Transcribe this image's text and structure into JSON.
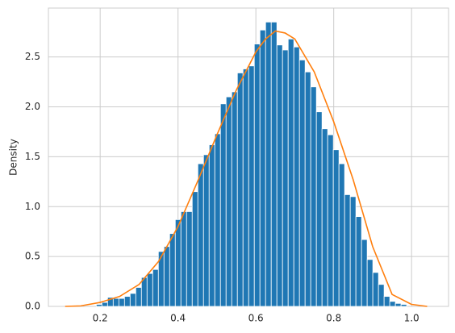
{
  "chart_data": {
    "type": "histogram",
    "ylabel": "Density",
    "bins": [
      0.19,
      0.2045,
      0.219,
      0.2335,
      0.248,
      0.2625,
      0.277,
      0.2915,
      0.306,
      0.3205,
      0.335,
      0.3495,
      0.364,
      0.3785,
      0.393,
      0.4075,
      0.422,
      0.4365,
      0.451,
      0.4655,
      0.48,
      0.4945,
      0.509,
      0.5235,
      0.538,
      0.5525,
      0.567,
      0.5815,
      0.596,
      0.6105,
      0.625,
      0.6395,
      0.654,
      0.6685,
      0.683,
      0.6975,
      0.712,
      0.7265,
      0.741,
      0.7555,
      0.77,
      0.7845,
      0.799,
      0.8135,
      0.828,
      0.8425,
      0.857,
      0.8715,
      0.886,
      0.9005,
      0.915,
      0.9295,
      0.944,
      0.9585,
      0.973,
      0.9875
    ],
    "values": [
      0.02,
      0.04,
      0.09,
      0.08,
      0.08,
      0.1,
      0.13,
      0.19,
      0.29,
      0.33,
      0.37,
      0.55,
      0.6,
      0.73,
      0.87,
      0.95,
      0.95,
      1.15,
      1.43,
      1.52,
      1.62,
      1.73,
      2.03,
      2.1,
      2.15,
      2.34,
      2.38,
      2.41,
      2.63,
      2.77,
      2.85,
      2.85,
      2.62,
      2.57,
      2.68,
      2.6,
      2.47,
      2.35,
      2.2,
      1.95,
      1.78,
      1.72,
      1.57,
      1.43,
      1.12,
      1.1,
      0.9,
      0.67,
      0.47,
      0.34,
      0.22,
      0.1,
      0.05,
      0.03,
      0.02
    ],
    "color": "#1f77b4",
    "line": {
      "x": [
        0.11,
        0.15,
        0.2,
        0.25,
        0.3,
        0.35,
        0.4,
        0.45,
        0.5,
        0.55,
        0.6,
        0.625,
        0.65,
        0.675,
        0.7,
        0.75,
        0.8,
        0.85,
        0.9,
        0.95,
        1.0,
        1.04
      ],
      "values": [
        0.0,
        0.005,
        0.04,
        0.1,
        0.22,
        0.45,
        0.8,
        1.25,
        1.72,
        2.17,
        2.55,
        2.68,
        2.76,
        2.74,
        2.68,
        2.35,
        1.85,
        1.27,
        0.6,
        0.12,
        0.02,
        0.0
      ],
      "color": "#ff7f0e"
    },
    "xlim": [
      0.067,
      1.095
    ],
    "ylim": [
      0,
      2.99
    ],
    "xticks": [
      0.2,
      0.4,
      0.6,
      0.8,
      {
        "value": 1.0,
        "label": "1.0"
      }
    ],
    "yticks": [
      {
        "value": 0,
        "label": "0.0"
      },
      0.5,
      {
        "value": 1.0,
        "label": "1.0"
      },
      1.5,
      {
        "value": 2.0,
        "label": "2.0"
      },
      2.5
    ],
    "grid": true
  }
}
